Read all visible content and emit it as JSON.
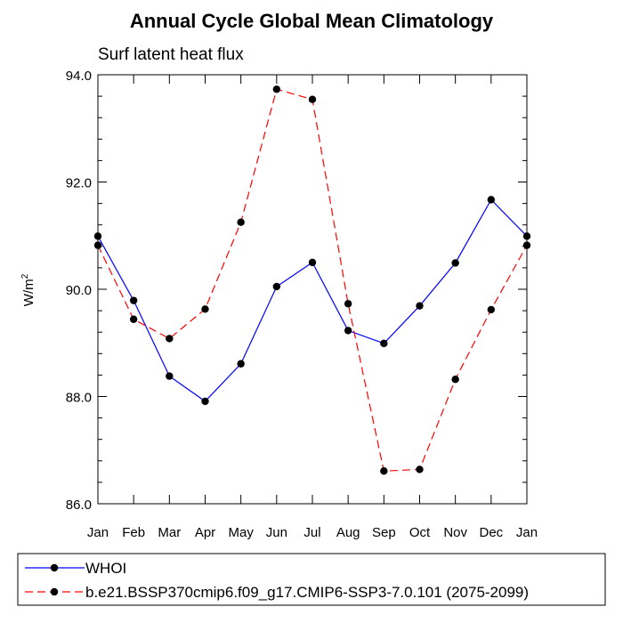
{
  "chart_data": {
    "type": "line",
    "title": "Annual Cycle Global Mean Climatology",
    "subtitle": "Surf latent heat flux",
    "ylabel": "W/m",
    "ylabel_sup": "2",
    "xlabel": "",
    "categories": [
      "Jan",
      "Feb",
      "Mar",
      "Apr",
      "May",
      "Jun",
      "Jul",
      "Aug",
      "Sep",
      "Oct",
      "Nov",
      "Dec",
      "Jan"
    ],
    "ylim": [
      86.0,
      94.0
    ],
    "yticks": [
      "86.0",
      "88.0",
      "90.0",
      "92.0",
      "94.0"
    ],
    "grid": false,
    "legend_position": "bottom",
    "series": [
      {
        "name": "WHOI",
        "color": "#0000ff",
        "line_style": "solid",
        "marker": "circle",
        "values": [
          90.99,
          89.79,
          88.38,
          87.91,
          88.61,
          90.05,
          90.5,
          89.23,
          88.99,
          89.69,
          90.49,
          91.67,
          90.99
        ]
      },
      {
        "name": "b.e21.BSSP370cmip6.f09_g17.CMIP6-SSP3-7.0.101 (2075-2099)",
        "color": "#ff0000",
        "line_style": "dashed",
        "marker": "circle",
        "values": [
          90.82,
          89.44,
          89.08,
          89.63,
          91.25,
          93.73,
          93.54,
          89.73,
          86.61,
          86.64,
          88.32,
          89.62,
          90.82
        ]
      }
    ]
  }
}
